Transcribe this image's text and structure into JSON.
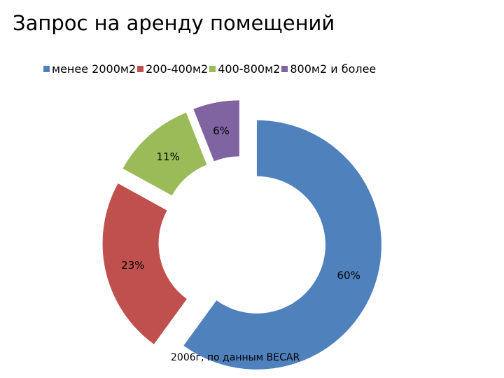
{
  "slide": {
    "title": "Запрос на аренду помещений",
    "source": "2006г, по данным BECAR"
  },
  "chart_data": {
    "type": "pie",
    "variant": "exploded-doughnut",
    "categories": [
      "менее 2000м2",
      "200-400м2",
      "400-800м2",
      "800м2 и более"
    ],
    "values": [
      60,
      23,
      11,
      6
    ],
    "labels": [
      "60%",
      "23%",
      "11%",
      "6%"
    ],
    "colors": [
      "#4F81BD",
      "#C0504D",
      "#9BBB59",
      "#8064A2"
    ],
    "legend_position": "top"
  }
}
